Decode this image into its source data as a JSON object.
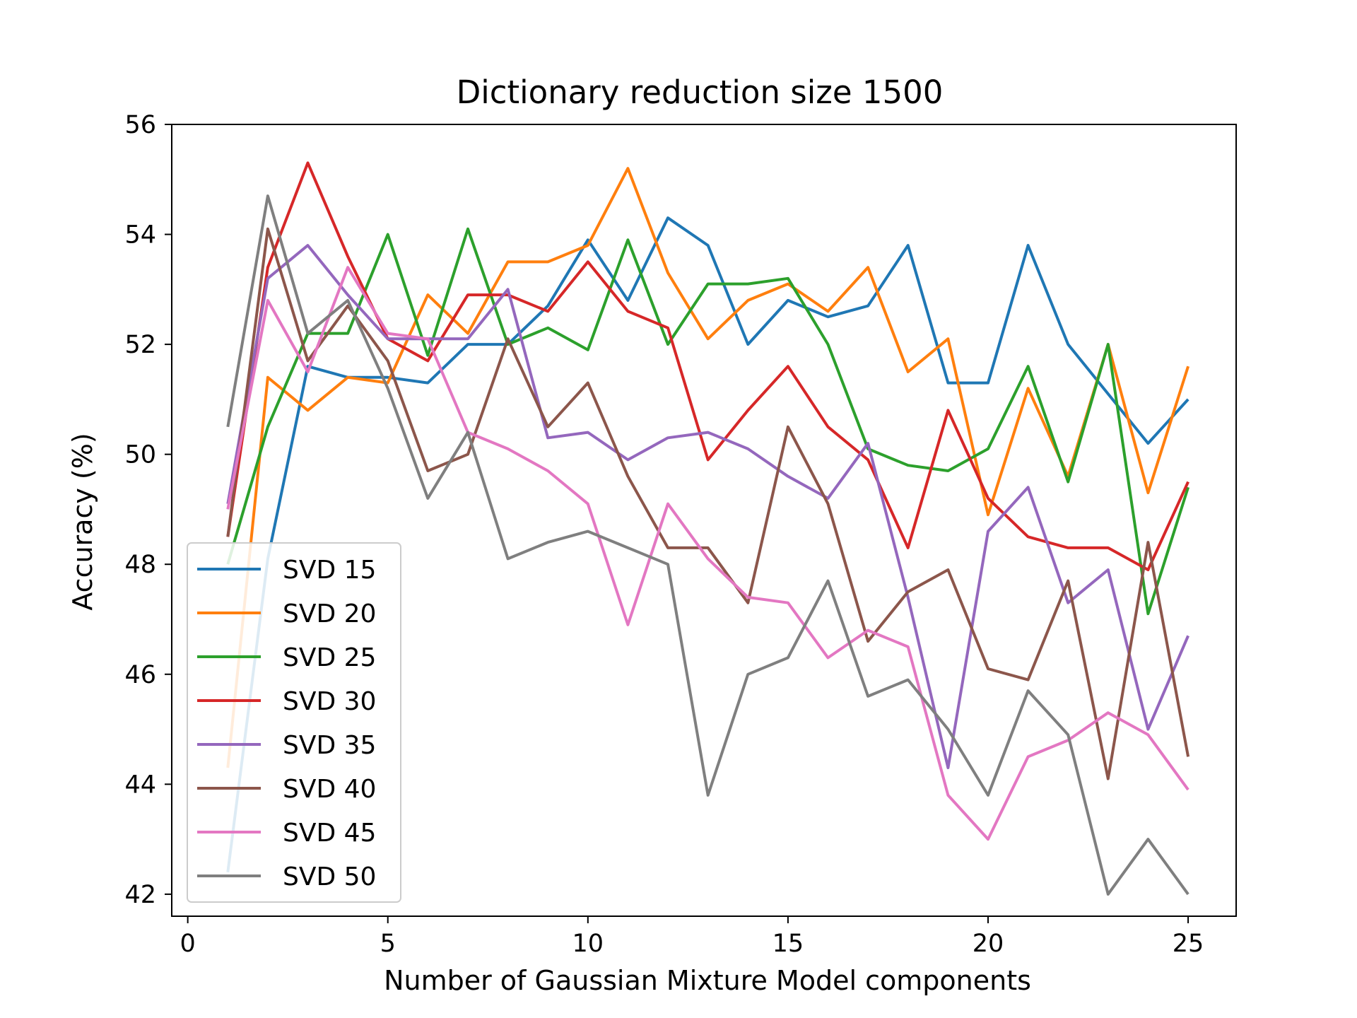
{
  "chart_data": {
    "type": "line",
    "title": "Dictionary reduction size 1500",
    "xlabel": "Number of Gaussian Mixture Model components",
    "ylabel": "Accuracy (%)",
    "xlim": [
      -0.4,
      26.2
    ],
    "ylim": [
      41.6,
      56.0
    ],
    "xticks": [
      0,
      5,
      10,
      15,
      20,
      25
    ],
    "yticks": [
      42,
      44,
      46,
      48,
      50,
      52,
      54,
      56
    ],
    "grid": false,
    "legend_position": "lower-left",
    "x": [
      1,
      2,
      3,
      4,
      5,
      6,
      7,
      8,
      9,
      10,
      11,
      12,
      13,
      14,
      15,
      16,
      17,
      18,
      19,
      20,
      21,
      22,
      23,
      24,
      25
    ],
    "series": [
      {
        "name": "SVD 15",
        "color": "#1f77b4",
        "values": [
          42.4,
          48.1,
          51.6,
          51.4,
          51.4,
          51.3,
          52.0,
          52.0,
          52.7,
          53.9,
          52.8,
          54.3,
          53.8,
          52.0,
          52.8,
          52.5,
          52.7,
          53.8,
          51.3,
          51.3,
          53.8,
          52.0,
          51.1,
          50.2,
          51.0
        ]
      },
      {
        "name": "SVD 20",
        "color": "#ff7f0e",
        "values": [
          44.3,
          51.4,
          50.8,
          51.4,
          51.3,
          52.9,
          52.2,
          53.5,
          53.5,
          53.8,
          55.2,
          53.3,
          52.1,
          52.8,
          53.1,
          52.6,
          53.4,
          51.5,
          52.1,
          48.9,
          51.2,
          49.6,
          52.0,
          49.3,
          51.6
        ]
      },
      {
        "name": "SVD 25",
        "color": "#2ca02c",
        "values": [
          48.0,
          50.5,
          52.2,
          52.2,
          54.0,
          51.8,
          54.1,
          52.0,
          52.3,
          51.9,
          53.9,
          52.0,
          53.1,
          53.1,
          53.2,
          52.0,
          50.1,
          49.8,
          49.7,
          50.1,
          51.6,
          49.5,
          52.0,
          47.1,
          49.4
        ]
      },
      {
        "name": "SVD 30",
        "color": "#d62728",
        "values": [
          48.5,
          53.4,
          55.3,
          53.6,
          52.1,
          51.7,
          52.9,
          52.9,
          52.6,
          53.5,
          52.6,
          52.3,
          49.9,
          50.8,
          51.6,
          50.5,
          49.9,
          48.3,
          50.8,
          49.2,
          48.5,
          48.3,
          48.3,
          47.9,
          49.5
        ]
      },
      {
        "name": "SVD 35",
        "color": "#9467bd",
        "values": [
          49.1,
          53.2,
          53.8,
          52.9,
          52.1,
          52.1,
          52.1,
          53.0,
          50.3,
          50.4,
          49.9,
          50.3,
          50.4,
          50.1,
          49.6,
          49.2,
          50.2,
          47.4,
          44.3,
          48.6,
          49.4,
          47.3,
          47.9,
          45.0,
          46.7
        ]
      },
      {
        "name": "SVD 40",
        "color": "#8c564b",
        "values": [
          48.5,
          54.1,
          51.7,
          52.7,
          51.7,
          49.7,
          50.0,
          52.1,
          50.5,
          51.3,
          49.6,
          48.3,
          48.3,
          47.3,
          50.5,
          49.1,
          46.6,
          47.5,
          47.9,
          46.1,
          45.9,
          47.7,
          44.1,
          48.4,
          44.5
        ]
      },
      {
        "name": "SVD 45",
        "color": "#e377c2",
        "values": [
          49.0,
          52.8,
          51.5,
          53.4,
          52.2,
          52.1,
          50.4,
          50.1,
          49.7,
          49.1,
          46.9,
          49.1,
          48.1,
          47.4,
          47.3,
          46.3,
          46.8,
          46.5,
          43.8,
          43.0,
          44.5,
          44.8,
          45.3,
          44.9,
          43.9
        ]
      },
      {
        "name": "SVD 50",
        "color": "#7f7f7f",
        "values": [
          50.5,
          54.7,
          52.2,
          52.8,
          51.2,
          49.2,
          50.4,
          48.1,
          48.4,
          48.6,
          48.3,
          48.0,
          43.8,
          46.0,
          46.3,
          47.7,
          45.6,
          45.9,
          45.0,
          43.8,
          45.7,
          44.9,
          42.0,
          43.0,
          42.0
        ]
      }
    ]
  }
}
